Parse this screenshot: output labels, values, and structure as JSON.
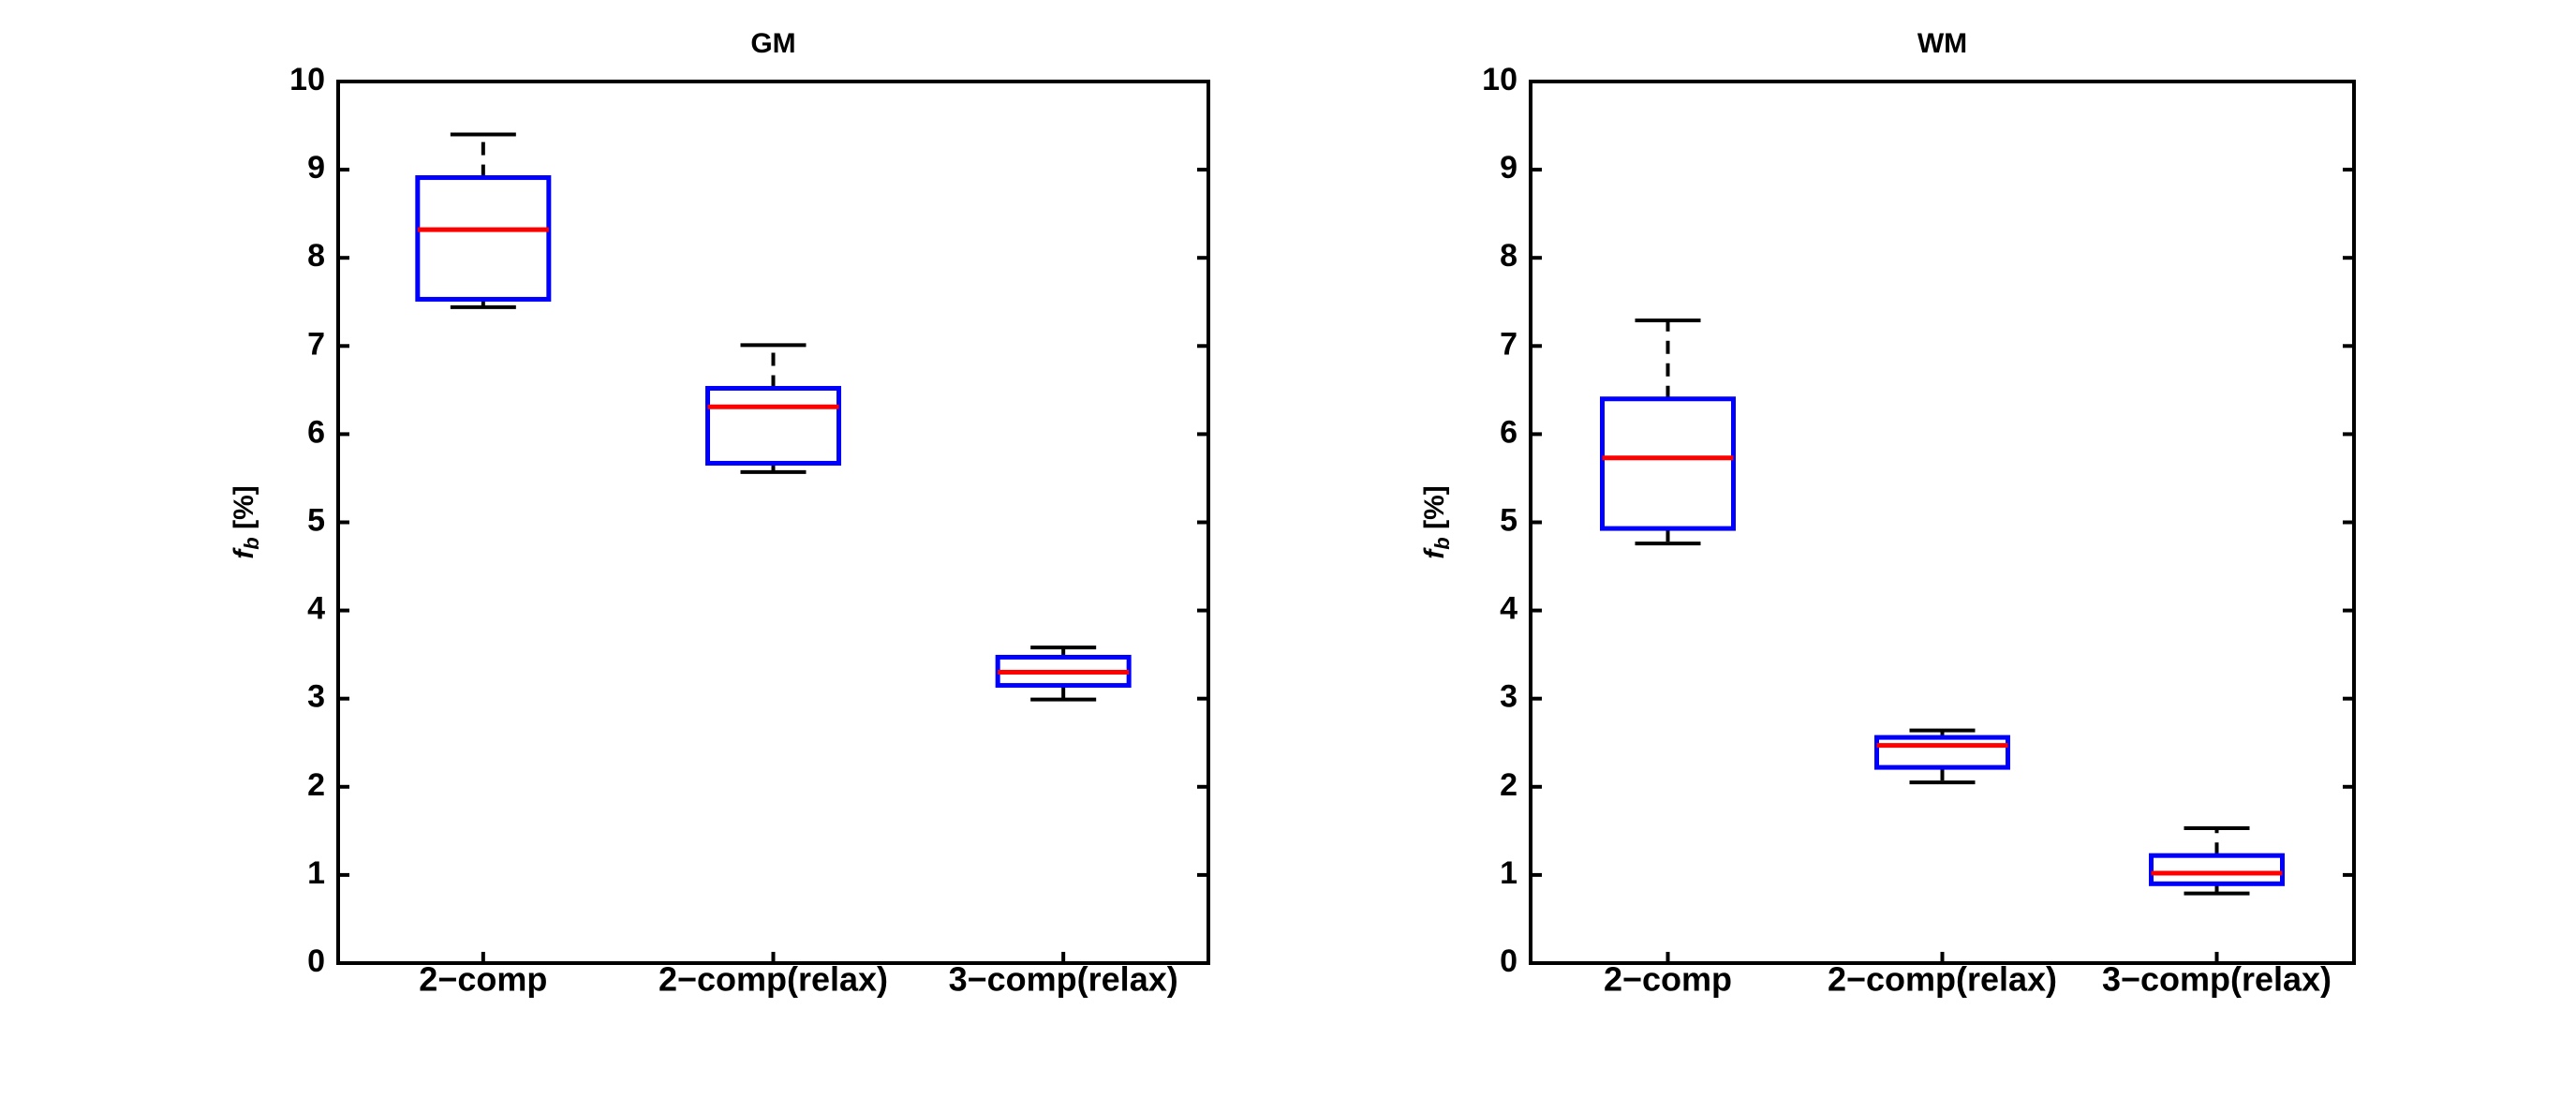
{
  "chart_data": [
    {
      "type": "box",
      "title": "GM",
      "ylabel": "f",
      "ylabel_subscript": "b",
      "ylabel_unit": "[%]",
      "categories": [
        "2−comp",
        "2−comp(relax)",
        "3−comp(relax)"
      ],
      "boxes": [
        {
          "whisker_low": 7.44,
          "q1": 7.53,
          "median": 8.32,
          "q3": 8.91,
          "whisker_high": 9.4
        },
        {
          "whisker_low": 5.57,
          "q1": 5.67,
          "median": 6.31,
          "q3": 6.52,
          "whisker_high": 7.01
        },
        {
          "whisker_low": 2.99,
          "q1": 3.15,
          "median": 3.3,
          "q3": 3.47,
          "whisker_high": 3.58
        }
      ],
      "ylim": [
        0,
        10
      ],
      "yticks": [
        0,
        1,
        2,
        3,
        4,
        5,
        6,
        7,
        8,
        9,
        10
      ],
      "box_color": "#0000ff",
      "median_color": "#ff0000",
      "whisker_color": "#000000"
    },
    {
      "type": "box",
      "title": "WM",
      "ylabel": "f",
      "ylabel_subscript": "b",
      "ylabel_unit": "[%]",
      "categories": [
        "2−comp",
        "2−comp(relax)",
        "3−comp(relax)"
      ],
      "boxes": [
        {
          "whisker_low": 4.76,
          "q1": 4.93,
          "median": 5.73,
          "q3": 6.4,
          "whisker_high": 7.29
        },
        {
          "whisker_low": 2.05,
          "q1": 2.22,
          "median": 2.47,
          "q3": 2.56,
          "whisker_high": 2.64
        },
        {
          "whisker_low": 0.79,
          "q1": 0.9,
          "median": 1.02,
          "q3": 1.22,
          "whisker_high": 1.53
        }
      ],
      "ylim": [
        0,
        10
      ],
      "yticks": [
        0,
        1,
        2,
        3,
        4,
        5,
        6,
        7,
        8,
        9,
        10
      ],
      "box_color": "#0000ff",
      "median_color": "#ff0000",
      "whisker_color": "#000000"
    }
  ]
}
